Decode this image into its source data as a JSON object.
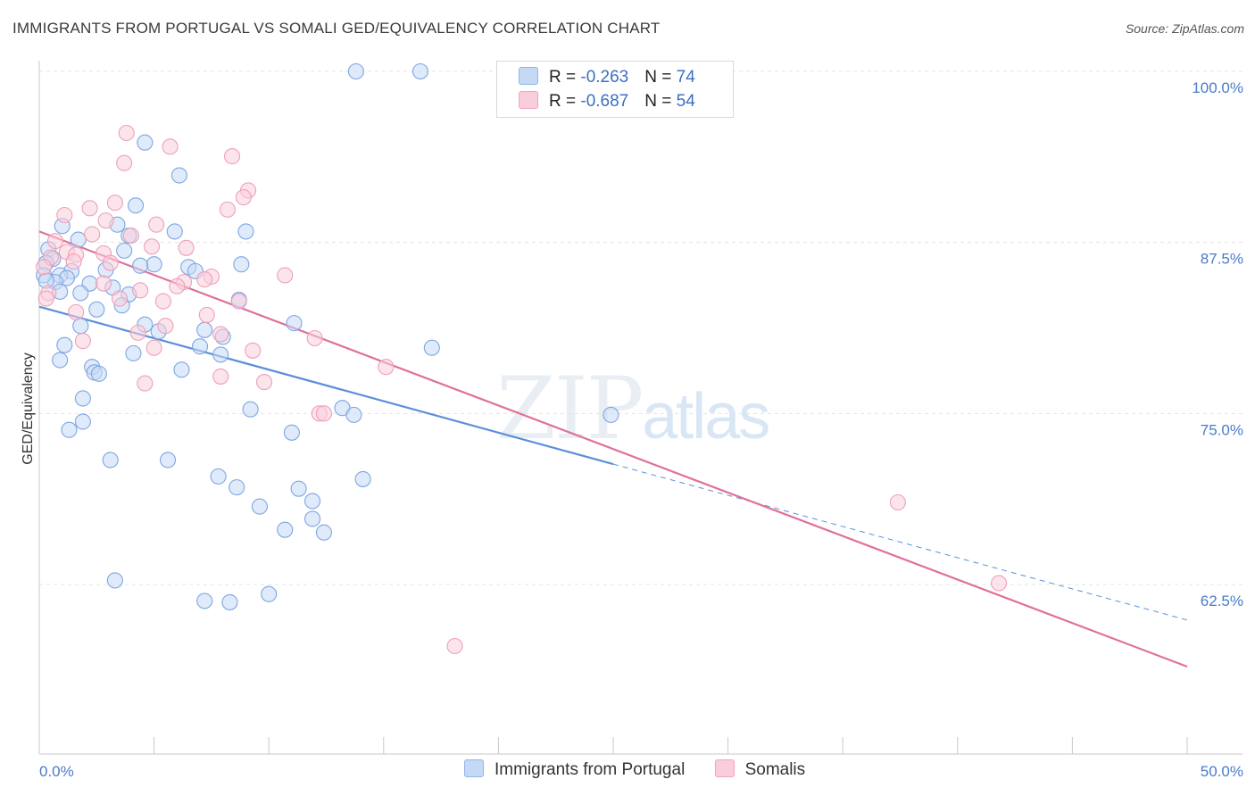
{
  "title": "IMMIGRANTS FROM PORTUGAL VS SOMALI GED/EQUIVALENCY CORRELATION CHART",
  "source": "Source: ZipAtlas.com",
  "watermark": {
    "zip": "ZIP",
    "atlas": "atlas"
  },
  "legend": {
    "rows": [
      {
        "r_label": "R = ",
        "r_value": "-0.263",
        "n_label": "N = ",
        "n_value": "74",
        "color": "#8fb4ea",
        "fill": "#c5d9f5"
      },
      {
        "r_label": "R = ",
        "r_value": "-0.687",
        "n_label": "N = ",
        "n_value": "54",
        "color": "#f0a3bd",
        "fill": "#f9cdda"
      }
    ]
  },
  "bottom_legend": [
    "Immigrants from Portugal",
    "Somalis"
  ],
  "chart_data": {
    "type": "scatter",
    "title": "IMMIGRANTS FROM PORTUGAL VS SOMALI GED/EQUIVALENCY CORRELATION CHART",
    "xlabel": "",
    "ylabel": "GED/Equivalency",
    "xlim": [
      0,
      50
    ],
    "ylim": [
      53,
      102
    ],
    "x_tick_labels": [
      "0.0%",
      "50.0%"
    ],
    "y_ticks": [
      62.5,
      75.0,
      87.5,
      100.0
    ],
    "y_tick_labels": [
      "62.5%",
      "75.0%",
      "87.5%",
      "100.0%"
    ],
    "grid": true,
    "series": [
      {
        "name": "Immigrants from Portugal",
        "color": "#5b8fd9",
        "fill": "#c5d9f5",
        "trend": {
          "x0": 0,
          "y0": 82.8,
          "x1": 25,
          "y1": 71.3,
          "dash_to_x": 50,
          "dash_to_y": 59.9
        },
        "points": [
          [
            13.8,
            100.0
          ],
          [
            16.6,
            100.0
          ],
          [
            4.6,
            94.8
          ],
          [
            6.1,
            92.4
          ],
          [
            4.2,
            90.2
          ],
          [
            3.4,
            88.8
          ],
          [
            1.0,
            88.7
          ],
          [
            5.9,
            88.3
          ],
          [
            9.0,
            88.3
          ],
          [
            3.9,
            88.0
          ],
          [
            1.7,
            87.7
          ],
          [
            0.4,
            87.0
          ],
          [
            3.7,
            86.9
          ],
          [
            0.6,
            86.3
          ],
          [
            0.3,
            86.0
          ],
          [
            5.0,
            85.9
          ],
          [
            4.4,
            85.8
          ],
          [
            6.5,
            85.7
          ],
          [
            8.8,
            85.9
          ],
          [
            2.9,
            85.5
          ],
          [
            1.4,
            85.4
          ],
          [
            6.8,
            85.4
          ],
          [
            0.9,
            85.1
          ],
          [
            1.2,
            84.9
          ],
          [
            0.7,
            84.6
          ],
          [
            2.2,
            84.5
          ],
          [
            3.2,
            84.2
          ],
          [
            1.8,
            83.8
          ],
          [
            3.9,
            83.7
          ],
          [
            0.9,
            83.9
          ],
          [
            8.7,
            83.3
          ],
          [
            3.6,
            82.9
          ],
          [
            2.5,
            82.6
          ],
          [
            11.1,
            81.6
          ],
          [
            4.6,
            81.5
          ],
          [
            5.2,
            81.0
          ],
          [
            7.2,
            81.1
          ],
          [
            1.8,
            81.4
          ],
          [
            8.0,
            80.6
          ],
          [
            1.1,
            80.0
          ],
          [
            7.0,
            79.9
          ],
          [
            17.1,
            79.8
          ],
          [
            4.1,
            79.4
          ],
          [
            7.9,
            79.3
          ],
          [
            0.9,
            78.9
          ],
          [
            6.2,
            78.2
          ],
          [
            2.3,
            78.4
          ],
          [
            2.4,
            78.0
          ],
          [
            2.6,
            77.9
          ],
          [
            1.9,
            76.1
          ],
          [
            9.2,
            75.3
          ],
          [
            13.2,
            75.4
          ],
          [
            13.7,
            74.9
          ],
          [
            24.9,
            74.9
          ],
          [
            1.9,
            74.4
          ],
          [
            1.3,
            73.8
          ],
          [
            11.0,
            73.6
          ],
          [
            3.1,
            71.6
          ],
          [
            5.6,
            71.6
          ],
          [
            7.8,
            70.4
          ],
          [
            8.6,
            69.6
          ],
          [
            14.1,
            70.2
          ],
          [
            11.3,
            69.5
          ],
          [
            11.9,
            68.6
          ],
          [
            9.6,
            68.2
          ],
          [
            11.9,
            67.3
          ],
          [
            10.7,
            66.5
          ],
          [
            12.4,
            66.3
          ],
          [
            3.3,
            62.8
          ],
          [
            10.0,
            61.8
          ],
          [
            7.2,
            61.3
          ],
          [
            8.3,
            61.2
          ],
          [
            0.2,
            85.1
          ],
          [
            0.3,
            84.7
          ]
        ]
      },
      {
        "name": "Somalis",
        "color": "#e0719a",
        "fill": "#f9cdda",
        "trend": {
          "x0": 0,
          "y0": 88.3,
          "x1": 50,
          "y1": 56.5
        },
        "points": [
          [
            3.8,
            95.5
          ],
          [
            5.7,
            94.5
          ],
          [
            8.4,
            93.8
          ],
          [
            3.7,
            93.3
          ],
          [
            9.1,
            91.3
          ],
          [
            8.9,
            90.8
          ],
          [
            3.3,
            90.4
          ],
          [
            2.2,
            90.0
          ],
          [
            8.2,
            89.9
          ],
          [
            1.1,
            89.5
          ],
          [
            2.9,
            89.1
          ],
          [
            5.1,
            88.8
          ],
          [
            2.3,
            88.1
          ],
          [
            4.0,
            88.0
          ],
          [
            0.7,
            87.6
          ],
          [
            4.9,
            87.2
          ],
          [
            6.4,
            87.1
          ],
          [
            1.2,
            86.8
          ],
          [
            2.8,
            86.7
          ],
          [
            1.6,
            86.6
          ],
          [
            0.5,
            86.4
          ],
          [
            1.5,
            86.1
          ],
          [
            3.1,
            86.0
          ],
          [
            0.2,
            85.7
          ],
          [
            10.7,
            85.1
          ],
          [
            7.5,
            85.0
          ],
          [
            7.2,
            84.8
          ],
          [
            6.3,
            84.6
          ],
          [
            2.8,
            84.5
          ],
          [
            6.0,
            84.3
          ],
          [
            4.4,
            84.0
          ],
          [
            0.4,
            83.8
          ],
          [
            3.5,
            83.4
          ],
          [
            5.4,
            83.2
          ],
          [
            8.7,
            83.2
          ],
          [
            1.6,
            82.4
          ],
          [
            7.3,
            82.2
          ],
          [
            5.5,
            81.4
          ],
          [
            4.3,
            80.9
          ],
          [
            7.9,
            80.8
          ],
          [
            12.0,
            80.5
          ],
          [
            1.9,
            80.3
          ],
          [
            5.0,
            79.8
          ],
          [
            9.3,
            79.6
          ],
          [
            15.1,
            78.4
          ],
          [
            7.9,
            77.7
          ],
          [
            9.8,
            77.3
          ],
          [
            4.6,
            77.2
          ],
          [
            12.2,
            75.0
          ],
          [
            12.4,
            75.0
          ],
          [
            37.4,
            68.5
          ],
          [
            41.8,
            62.6
          ],
          [
            18.1,
            58.0
          ],
          [
            0.3,
            83.4
          ]
        ]
      }
    ]
  }
}
